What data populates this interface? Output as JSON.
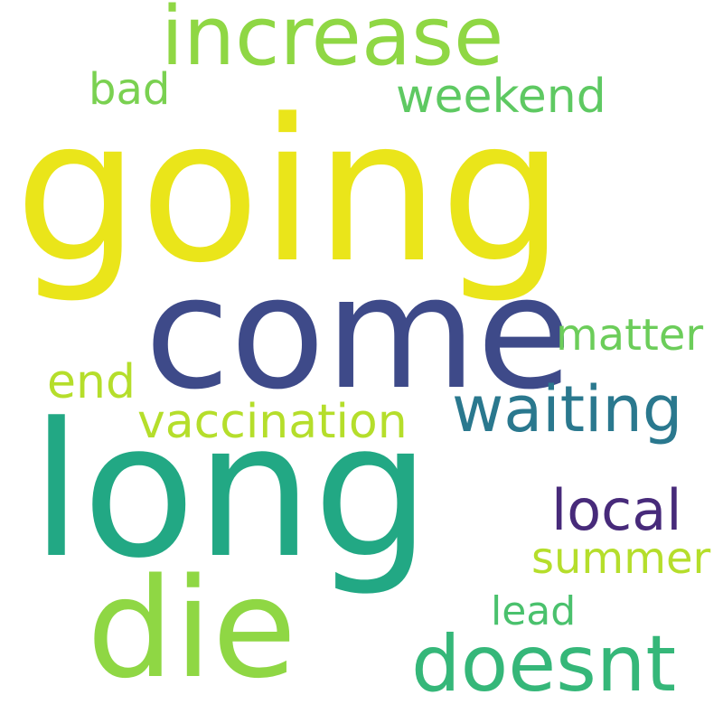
{
  "word_cloud": {
    "words": [
      {
        "id": "going",
        "text": "going",
        "color": "#eae51a"
      },
      {
        "id": "come",
        "text": "come",
        "color": "#3e4a89"
      },
      {
        "id": "long",
        "text": "long",
        "color": "#22a884"
      },
      {
        "id": "die",
        "text": "die",
        "color": "#8fd744"
      },
      {
        "id": "increase",
        "text": "increase",
        "color": "#8fd744"
      },
      {
        "id": "doesnt",
        "text": "doesnt",
        "color": "#35b779"
      },
      {
        "id": "waiting",
        "text": "waiting",
        "color": "#2a788e"
      },
      {
        "id": "vaccination",
        "text": "vaccination",
        "color": "#b5de2b"
      },
      {
        "id": "weekend",
        "text": "weekend",
        "color": "#5ec962"
      },
      {
        "id": "local",
        "text": "local",
        "color": "#472a7a"
      },
      {
        "id": "matter",
        "text": "matter",
        "color": "#6ccd5a"
      },
      {
        "id": "summer",
        "text": "summer",
        "color": "#b5de2b"
      },
      {
        "id": "end",
        "text": "end",
        "color": "#b5de2b"
      },
      {
        "id": "bad",
        "text": "bad",
        "color": "#7ad151"
      },
      {
        "id": "lead",
        "text": "lead",
        "color": "#4ac16d"
      }
    ]
  }
}
